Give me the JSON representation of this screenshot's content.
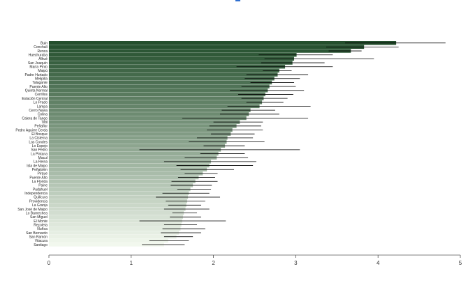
{
  "colors": {
    "dark": "#244f2d",
    "light": "#f2f8ee",
    "error": "#000000",
    "accent": "#2f6fd0"
  },
  "chart_data": {
    "type": "bar",
    "orientation": "horizontal",
    "title": "",
    "xlabel": "",
    "ylabel": "",
    "xlim": [
      0,
      5
    ],
    "xticks": [
      0,
      1,
      2,
      3,
      4,
      5
    ],
    "grid": false,
    "error_bars": true,
    "categories": [
      "Buin",
      "Conchalí",
      "Renca",
      "Huechuraba",
      "Alhué",
      "San Joaquín",
      "María Pinto",
      "Maipú",
      "Padre Hurtado",
      "Melipilla",
      "Talagante",
      "Puente Alto",
      "Quinta Normal",
      "Cerrillos",
      "Estación Central",
      "Lo Prado",
      "Lampa",
      "Cerro Navia",
      "Colina",
      "Calera de Tango",
      "Tiltil",
      "Peñaflor",
      "Pedro Aguirre Cerda",
      "El Bosque",
      "La Cisterna",
      "Las Condes",
      "Lo Espejo",
      "San Pedro",
      "La Pintana",
      "Macul",
      "La Reina",
      "Isla de Maipo",
      "Peñalolén",
      "Pirque",
      "Puente Alto",
      "La Florida",
      "Paine",
      "Pudahuel",
      "Independencia",
      "Quilicura",
      "Providencia",
      "La Granja",
      "San José de Maipo",
      "Lo Barnechea",
      "San Miguel",
      "El Monte",
      "Recoleta",
      "Ñuñoa",
      "San Bernardo",
      "San Ramón",
      "Vitacura",
      "Santiago"
    ],
    "values": [
      4.22,
      3.83,
      3.67,
      3.01,
      2.98,
      2.96,
      2.87,
      2.8,
      2.78,
      2.74,
      2.71,
      2.68,
      2.66,
      2.63,
      2.61,
      2.59,
      2.56,
      2.45,
      2.43,
      2.4,
      2.32,
      2.28,
      2.23,
      2.21,
      2.17,
      2.16,
      2.14,
      2.09,
      2.06,
      2.04,
      1.97,
      1.95,
      1.92,
      1.87,
      1.82,
      1.78,
      1.75,
      1.72,
      1.7,
      1.69,
      1.68,
      1.67,
      1.66,
      1.64,
      1.63,
      1.62,
      1.61,
      1.6,
      1.58,
      1.55,
      1.45,
      1.4
    ],
    "error_low": [
      3.6,
      3.37,
      3.4,
      2.55,
      2.62,
      2.58,
      2.28,
      2.6,
      2.4,
      2.38,
      2.45,
      2.34,
      2.2,
      2.3,
      2.34,
      2.4,
      2.17,
      2.1,
      2.08,
      1.62,
      2.0,
      1.95,
      1.92,
      1.97,
      1.8,
      1.7,
      1.88,
      1.1,
      1.84,
      1.65,
      1.4,
      1.55,
      1.6,
      1.65,
      1.57,
      1.49,
      1.48,
      1.56,
      1.38,
      1.3,
      1.42,
      1.45,
      1.4,
      1.5,
      1.47,
      1.1,
      1.4,
      1.38,
      1.36,
      1.4,
      1.22,
      1.13
    ],
    "error_high": [
      4.82,
      4.25,
      3.8,
      3.45,
      3.95,
      3.35,
      3.45,
      2.95,
      3.15,
      3.05,
      2.98,
      3.0,
      3.1,
      2.97,
      2.9,
      2.85,
      3.18,
      2.75,
      2.8,
      3.15,
      2.6,
      2.58,
      2.6,
      2.5,
      2.48,
      2.62,
      2.38,
      3.05,
      2.38,
      2.42,
      2.52,
      2.48,
      2.25,
      2.05,
      2.02,
      2.05,
      1.98,
      1.97,
      1.95,
      2.08,
      1.9,
      1.85,
      1.95,
      1.8,
      1.85,
      2.15,
      1.8,
      1.9,
      1.85,
      1.75,
      1.7,
      1.65
    ]
  }
}
